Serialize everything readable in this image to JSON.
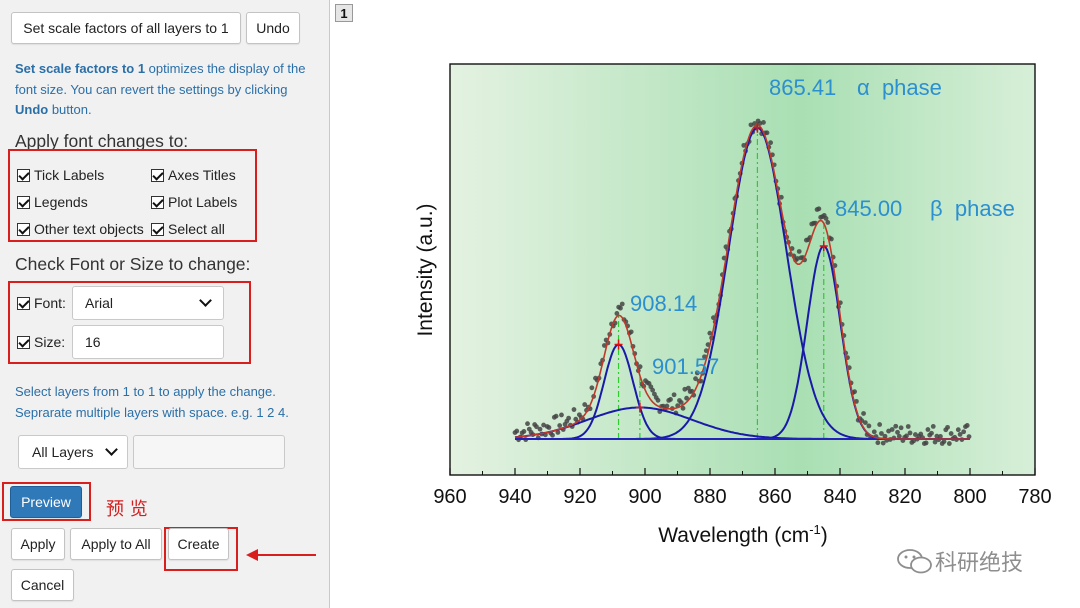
{
  "dialog": {
    "set_scale_button": "Set scale factors of all layers to 1",
    "undo_button": "Undo",
    "hint_bold_1": "Set scale factors to 1",
    "hint_text_1": " optimizes the display of the font size. You can revert the settings by clicking ",
    "hint_bold_2": "Undo",
    "hint_text_2": " button.",
    "apply_heading": "Apply font changes to:",
    "apply_options": [
      "Tick Labels",
      "Axes Titles",
      "Legends",
      "Plot Labels",
      "Other text objects",
      "Select all"
    ],
    "check_heading": "Check Font or Size to change:",
    "font_label": "Font:",
    "font_value": "Arial",
    "size_label": "Size:",
    "size_value": "16",
    "layers_hint": "Select layers from 1 to 1 to apply the change. Seprarate multiple layers with space. e.g. 1 2 4.",
    "layers_select": "All Layers",
    "layers_input": "",
    "preview_button": "Preview",
    "preview_annotation": "预 览",
    "apply_button": "Apply",
    "apply_all_button": "Apply to All",
    "create_button": "Create",
    "cancel_button": "Cancel"
  },
  "layer_badge": "1",
  "watermark": "科研绝技",
  "chart_data": {
    "type": "line",
    "xlabel": "Wavelength (cm",
    "xlabel_sup": "-1",
    "xlabel_end": ")",
    "ylabel": "Intensity (a.u.)",
    "xlim": [
      960,
      780
    ],
    "x_reversed": true,
    "x_ticks": [
      960,
      940,
      920,
      900,
      880,
      860,
      840,
      820,
      800,
      780
    ],
    "ylim": [
      0,
      1
    ],
    "background_gradient": [
      "#e4f2e1",
      "#a9dfb3",
      "#d7efd8"
    ],
    "peaks": [
      {
        "center": 908.14,
        "amplitude": 0.24,
        "fwhm": 10.5,
        "label": "908.14",
        "color": "#1a1aa8"
      },
      {
        "center": 901.57,
        "amplitude": 0.08,
        "fwhm": 38,
        "label": "901.57",
        "color": "#1a1aa8"
      },
      {
        "center": 865.41,
        "amplitude": 0.79,
        "fwhm": 21,
        "label": "865.41",
        "phase": "α phase",
        "color": "#1a1aa8"
      },
      {
        "center": 845.0,
        "amplitude": 0.49,
        "fwhm": 12,
        "label": "845.00",
        "phase": "β phase",
        "color": "#1a1aa8"
      }
    ],
    "fit_range": [
      940,
      800
    ],
    "baseline": 0,
    "label_color": "#2b8fd0",
    "fit_color": "#c0392b",
    "data_color": "#444444"
  }
}
